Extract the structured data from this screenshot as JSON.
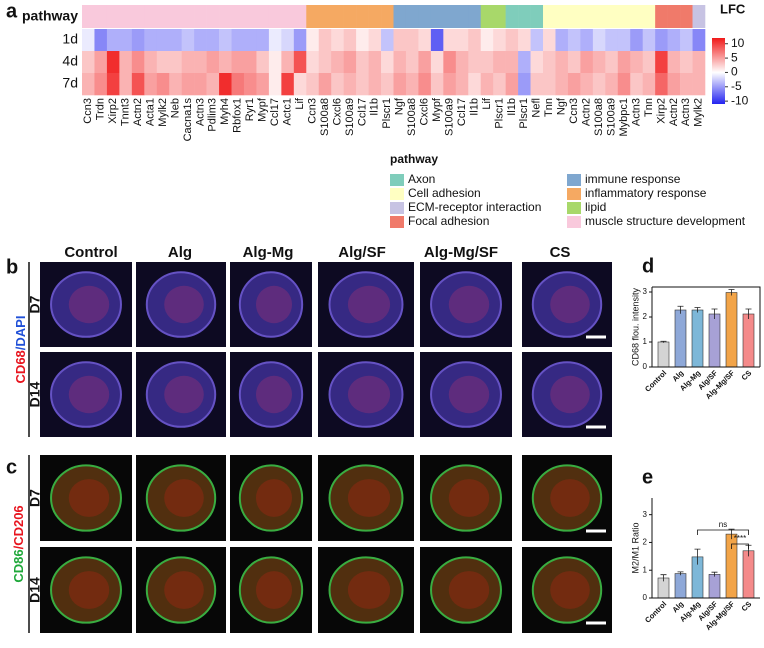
{
  "chart_data": [
    {
      "type": "heatmap",
      "panel_label": "a",
      "row_header": "pathway",
      "rows": [
        "1d",
        "4d",
        "7d"
      ],
      "columns": [
        "Ccn3",
        "Trdn",
        "Xirp2",
        "Tnnt3",
        "Actn2",
        "Acta1",
        "Mylk2",
        "Neb",
        "Cacna1s",
        "Actn3",
        "Pdlim3",
        "Myh4",
        "Rbfox1",
        "Ryr1",
        "Mypf",
        "Ccl17",
        "Actc1",
        "Lif",
        "Ccn3",
        "S100a8",
        "Cxcl6",
        "S100a9",
        "Ccl17",
        "Il1b",
        "Plscr1",
        "Ngf",
        "S100a8",
        "Cxcl6",
        "Mypf",
        "S100a9",
        "Ccl17",
        "Il1b",
        "Lif",
        "Plscr1",
        "Il1b",
        "Plscr1",
        "Nefl",
        "Tnn",
        "Ngf",
        "Ccn3",
        "Actn2",
        "S100a8",
        "S100a9",
        "Mybpc1",
        "Actn3",
        "Tnn",
        "Xirp2",
        "Actn2",
        "Actn3",
        "Mylk2"
      ],
      "column_pathway": [
        7,
        7,
        7,
        7,
        7,
        7,
        7,
        7,
        7,
        7,
        7,
        7,
        7,
        7,
        7,
        7,
        7,
        7,
        5,
        5,
        5,
        5,
        5,
        5,
        5,
        4,
        4,
        4,
        4,
        4,
        4,
        4,
        6,
        6,
        0,
        0,
        0,
        1,
        1,
        1,
        1,
        1,
        1,
        1,
        1,
        1,
        3,
        3,
        3,
        2
      ],
      "values": [
        [
          -1,
          -6,
          -4,
          -4,
          -5,
          -4,
          -4,
          -4,
          -3,
          -4,
          -4,
          -3,
          -4,
          -4,
          -4,
          -1,
          -2,
          -5,
          1,
          3,
          2,
          3,
          1,
          2,
          -3,
          3,
          3,
          2,
          -8,
          2,
          2,
          3,
          1,
          2,
          3,
          2,
          -3,
          2,
          -4,
          -3,
          -4,
          -2,
          -3,
          -3,
          -5,
          -3,
          -5,
          -4,
          -3,
          -6
        ],
        [
          3,
          5,
          11,
          4,
          6,
          4,
          3,
          3,
          4,
          4,
          5,
          4,
          5,
          5,
          3,
          1,
          4,
          9,
          2,
          3,
          4,
          5,
          3,
          4,
          2,
          4,
          3,
          5,
          2,
          6,
          4,
          3,
          3,
          4,
          4,
          -4,
          2,
          3,
          4,
          3,
          5,
          4,
          3,
          5,
          4,
          3,
          10,
          4,
          3,
          4
        ],
        [
          4,
          6,
          10,
          4,
          9,
          5,
          6,
          4,
          5,
          5,
          4,
          11,
          7,
          6,
          5,
          1,
          10,
          2,
          3,
          5,
          3,
          4,
          3,
          4,
          3,
          5,
          4,
          6,
          3,
          5,
          4,
          2,
          4,
          3,
          5,
          -5,
          3,
          3,
          4,
          5,
          4,
          3,
          4,
          6,
          3,
          4,
          8,
          5,
          4,
          4
        ]
      ],
      "colorbar": {
        "title": "LFC",
        "clim": [
          -11,
          12
        ],
        "ticks": [
          10,
          5,
          0,
          -5,
          -10
        ],
        "colors": [
          "#2323f0",
          "#ffffff",
          "#f01a1a"
        ]
      },
      "legend": {
        "title": "pathway",
        "items": [
          {
            "name": "Axon",
            "color": "#7fcdbb"
          },
          {
            "name": "Cell adhesion",
            "color": "#ffffc2"
          },
          {
            "name": "ECM-receptor interaction",
            "color": "#c7c3e3"
          },
          {
            "name": "Focal adhesion",
            "color": "#f07a6a"
          },
          {
            "name": "immune response",
            "color": "#7fa7cf"
          },
          {
            "name": "inflammatory response",
            "color": "#f5a962"
          },
          {
            "name": "lipid",
            "color": "#a8d86a"
          },
          {
            "name": "muscle structure development",
            "color": "#f9c9dc"
          }
        ]
      }
    },
    {
      "type": "bar",
      "panel_label": "d",
      "ylabel": "CD68 flou. intensity",
      "categories": [
        "Control",
        "Alg",
        "Alg-Mg",
        "Alg/SF",
        "Alg-Mg/SF",
        "CS"
      ],
      "values": [
        1.0,
        2.28,
        2.28,
        2.12,
        2.98,
        2.12
      ],
      "errors": [
        0.03,
        0.15,
        0.1,
        0.2,
        0.12,
        0.2
      ],
      "colors": [
        "#d4d4d4",
        "#8ea8d8",
        "#7db7d8",
        "#a7a1d6",
        "#f2a448",
        "#f48a8a"
      ],
      "ylim": [
        0,
        3.2
      ],
      "yticks": [
        0,
        1,
        2,
        3
      ]
    },
    {
      "type": "bar",
      "panel_label": "e",
      "ylabel": "M2/M1 Ratio",
      "categories": [
        "Control",
        "Alg",
        "Alg-Mg",
        "Alg/SF",
        "Alg-Mg/SF",
        "CS"
      ],
      "values": [
        0.72,
        0.88,
        1.48,
        0.85,
        2.3,
        1.7
      ],
      "errors": [
        0.12,
        0.06,
        0.28,
        0.08,
        0.18,
        0.2
      ],
      "colors": [
        "#d4d4d4",
        "#8ea8d8",
        "#7db7d8",
        "#a7a1d6",
        "#f2a448",
        "#f48a8a"
      ],
      "ylim": [
        0,
        3.6
      ],
      "yticks": [
        0,
        1,
        2,
        3
      ],
      "annotations": [
        {
          "text": "ns",
          "from": 2,
          "to": 5
        },
        {
          "text": "****",
          "from": 4,
          "to": 5
        }
      ]
    }
  ],
  "panels": [
    {
      "label": "b",
      "stain": [
        {
          "text": "CD68",
          "color": "#e8141e"
        },
        {
          "text": "/DAPI",
          "color": "#2050d8"
        }
      ],
      "columns": [
        "Control",
        "Alg",
        "Alg-Mg",
        "Alg/SF",
        "Alg-Mg/SF",
        "CS"
      ],
      "rows": [
        "D7",
        "D14"
      ]
    },
    {
      "label": "c",
      "stain": [
        {
          "text": "CD86",
          "color": "#1fa83a"
        },
        {
          "text": "/CD206",
          "color": "#e8141e"
        }
      ],
      "rows": [
        "D7",
        "D14"
      ]
    }
  ]
}
